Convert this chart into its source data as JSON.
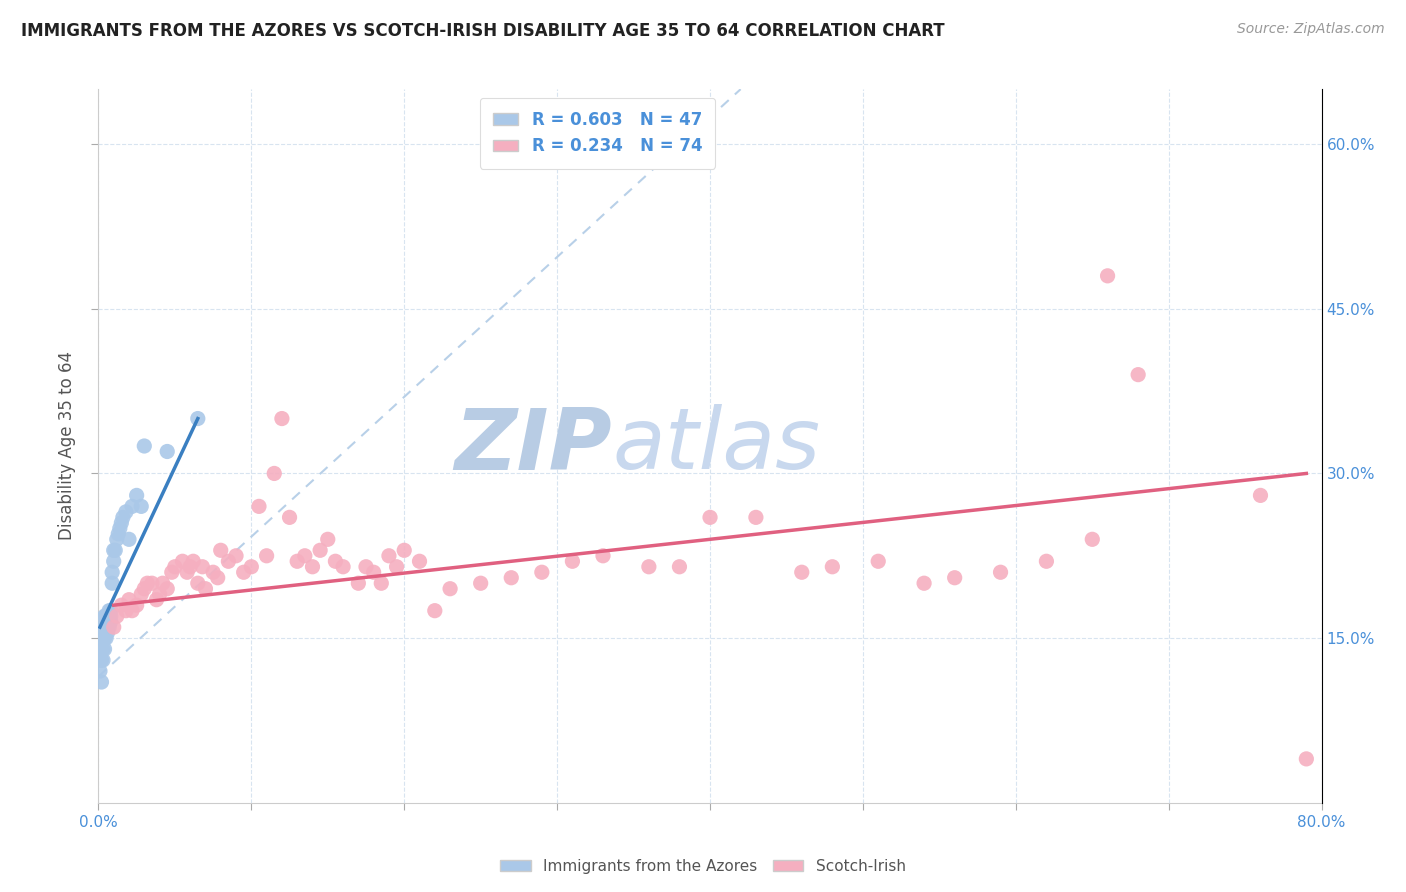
{
  "title": "IMMIGRANTS FROM THE AZORES VS SCOTCH-IRISH DISABILITY AGE 35 TO 64 CORRELATION CHART",
  "source": "Source: ZipAtlas.com",
  "ylabel": "Disability Age 35 to 64",
  "x_min": 0.0,
  "x_max": 0.8,
  "y_min": 0.0,
  "y_max": 0.65,
  "x_ticks": [
    0.0,
    0.1,
    0.2,
    0.3,
    0.4,
    0.5,
    0.6,
    0.7,
    0.8
  ],
  "x_tick_labels": [
    "0.0%",
    "",
    "",
    "",
    "",
    "",
    "",
    "",
    "80.0%"
  ],
  "y_ticks": [
    0.15,
    0.3,
    0.45,
    0.6
  ],
  "right_tick_labels": [
    "15.0%",
    "30.0%",
    "45.0%",
    "60.0%"
  ],
  "azores_color": "#aac8e8",
  "scotch_color": "#f5afc0",
  "azores_line_color": "#3a7fc1",
  "scotch_line_color": "#e06080",
  "dashed_line_color": "#b8d0e8",
  "watermark_zip_color": "#b8cce4",
  "watermark_atlas_color": "#c8d8ee",
  "R_azores": 0.603,
  "N_azores": 47,
  "R_scotch": 0.234,
  "N_scotch": 74,
  "azores_label": "Immigrants from the Azores",
  "scotch_label": "Scotch-Irish",
  "azores_x": [
    0.001,
    0.001,
    0.002,
    0.002,
    0.002,
    0.003,
    0.003,
    0.003,
    0.003,
    0.004,
    0.004,
    0.004,
    0.004,
    0.004,
    0.005,
    0.005,
    0.005,
    0.005,
    0.005,
    0.006,
    0.006,
    0.006,
    0.006,
    0.007,
    0.007,
    0.007,
    0.008,
    0.008,
    0.008,
    0.009,
    0.009,
    0.01,
    0.01,
    0.011,
    0.012,
    0.013,
    0.014,
    0.015,
    0.016,
    0.018,
    0.02,
    0.022,
    0.025,
    0.028,
    0.03,
    0.045,
    0.065
  ],
  "azores_y": [
    0.12,
    0.13,
    0.11,
    0.13,
    0.14,
    0.13,
    0.14,
    0.15,
    0.16,
    0.14,
    0.15,
    0.155,
    0.16,
    0.17,
    0.15,
    0.155,
    0.16,
    0.165,
    0.17,
    0.155,
    0.16,
    0.165,
    0.17,
    0.16,
    0.17,
    0.175,
    0.165,
    0.17,
    0.175,
    0.2,
    0.21,
    0.22,
    0.23,
    0.23,
    0.24,
    0.245,
    0.25,
    0.255,
    0.26,
    0.265,
    0.24,
    0.27,
    0.28,
    0.27,
    0.325,
    0.32,
    0.35
  ],
  "scotch_x": [
    0.01,
    0.012,
    0.015,
    0.018,
    0.02,
    0.022,
    0.025,
    0.028,
    0.03,
    0.032,
    0.035,
    0.038,
    0.04,
    0.042,
    0.045,
    0.048,
    0.05,
    0.055,
    0.058,
    0.06,
    0.062,
    0.065,
    0.068,
    0.07,
    0.075,
    0.078,
    0.08,
    0.085,
    0.09,
    0.095,
    0.1,
    0.105,
    0.11,
    0.115,
    0.12,
    0.125,
    0.13,
    0.135,
    0.14,
    0.145,
    0.15,
    0.155,
    0.16,
    0.17,
    0.175,
    0.18,
    0.185,
    0.19,
    0.195,
    0.2,
    0.21,
    0.22,
    0.23,
    0.25,
    0.27,
    0.29,
    0.31,
    0.33,
    0.36,
    0.38,
    0.4,
    0.43,
    0.46,
    0.48,
    0.51,
    0.54,
    0.56,
    0.59,
    0.62,
    0.65,
    0.66,
    0.68,
    0.76,
    0.79
  ],
  "scotch_y": [
    0.16,
    0.17,
    0.18,
    0.175,
    0.185,
    0.175,
    0.18,
    0.19,
    0.195,
    0.2,
    0.2,
    0.185,
    0.19,
    0.2,
    0.195,
    0.21,
    0.215,
    0.22,
    0.21,
    0.215,
    0.22,
    0.2,
    0.215,
    0.195,
    0.21,
    0.205,
    0.23,
    0.22,
    0.225,
    0.21,
    0.215,
    0.27,
    0.225,
    0.3,
    0.35,
    0.26,
    0.22,
    0.225,
    0.215,
    0.23,
    0.24,
    0.22,
    0.215,
    0.2,
    0.215,
    0.21,
    0.2,
    0.225,
    0.215,
    0.23,
    0.22,
    0.175,
    0.195,
    0.2,
    0.205,
    0.21,
    0.22,
    0.225,
    0.215,
    0.215,
    0.26,
    0.26,
    0.21,
    0.215,
    0.22,
    0.2,
    0.205,
    0.21,
    0.22,
    0.24,
    0.48,
    0.39,
    0.28,
    0.04
  ],
  "azores_line_x": [
    0.001,
    0.065
  ],
  "azores_line_y": [
    0.16,
    0.35
  ],
  "scotch_line_x": [
    0.01,
    0.79
  ],
  "scotch_line_y": [
    0.18,
    0.3
  ],
  "dash_line_x": [
    0.0,
    0.42
  ],
  "dash_line_y": [
    0.115,
    0.65
  ]
}
